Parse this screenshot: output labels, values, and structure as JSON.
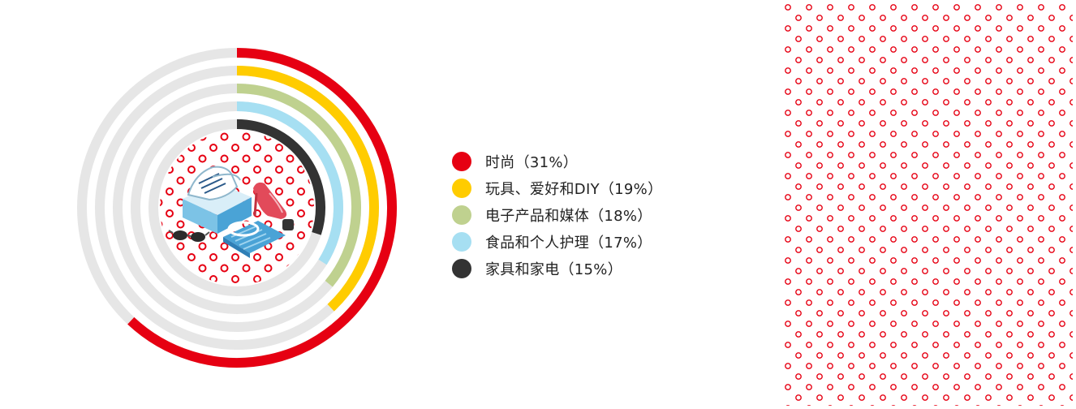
{
  "chart_data": {
    "type": "radial-bar",
    "max": 50,
    "series": [
      {
        "name": "时尚（31%）",
        "value": 31,
        "color": "#e60012"
      },
      {
        "name": "玩具、爱好和DIY（19%）",
        "value": 19,
        "color": "#ffcc00"
      },
      {
        "name": "电子产品和媒体（18%）",
        "value": 18,
        "color": "#bfd18f"
      },
      {
        "name": "食品和个人护理（17%）",
        "value": 17,
        "color": "#a6dff2"
      },
      {
        "name": "家具和家电（15%）",
        "value": 15,
        "color": "#333333"
      }
    ],
    "track_color": "#e6e6e6",
    "legend": "right"
  },
  "decor": {
    "center_illustration": "fashion-items-illustration",
    "pattern_color": "#e60012"
  }
}
